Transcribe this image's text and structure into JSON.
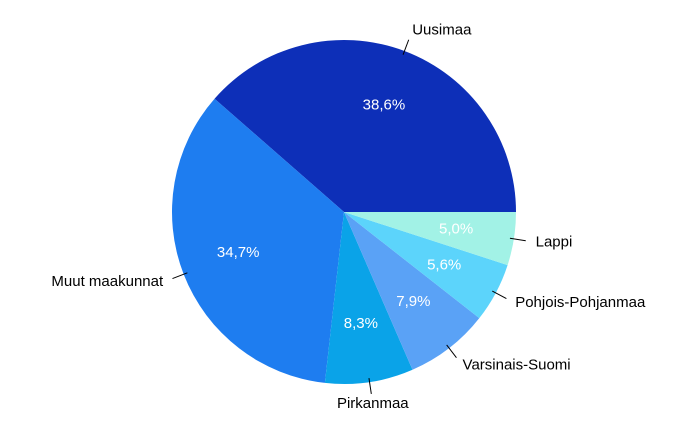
{
  "chart_data": {
    "type": "pie",
    "categories": [
      "Uusimaa",
      "Muut maakunnat",
      "Pirkanmaa",
      "Varsinais-Suomi",
      "Pohjois-Pohjanmaa",
      "Lappi"
    ],
    "values": [
      38.6,
      34.7,
      8.3,
      7.9,
      5.6,
      5.0
    ],
    "value_labels": [
      "38,6%",
      "34,7%",
      "8,3%",
      "7,9%",
      "5,6%",
      "5,0%"
    ],
    "colors": [
      "#0d2fb8",
      "#1e7df0",
      "#0aa3e8",
      "#5aa2f6",
      "#5cd4fb",
      "#a2f2e6"
    ]
  }
}
